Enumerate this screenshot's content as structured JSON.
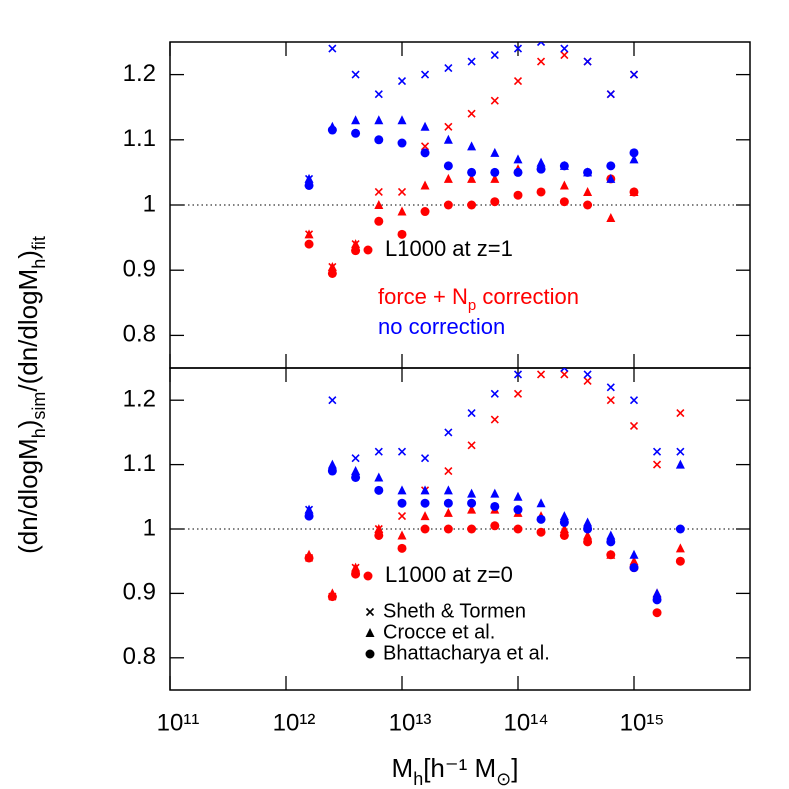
{
  "chart_data": [
    {
      "type": "scatter",
      "xlog": true,
      "xlim": [
        100000000000.0,
        1e+16
      ],
      "ylim": [
        0.75,
        1.25
      ],
      "hline": 1,
      "yticks": [
        {
          "value": 0.8,
          "label": "0.8"
        },
        {
          "value": 0.9,
          "label": "0.9"
        },
        1,
        {
          "value": 1.1,
          "label": "1.1"
        },
        {
          "value": 1.2,
          "label": "1.2"
        }
      ],
      "x": [
        1580000000000.0,
        2510000000000.0,
        3980000000000.0,
        6310000000000.0,
        10000000000000.0,
        15800000000000.0,
        25100000000000.0,
        39800000000000.0,
        63100000000000.0,
        100000000000000.0,
        158000000000000.0,
        251000000000000.0,
        398000000000000.0,
        631000000000000.0,
        1000000000000000.0
      ],
      "series": [
        {
          "color": "#ff0000",
          "marker": "circle",
          "values": [
            0.94,
            0.895,
            0.93,
            0.975,
            0.955,
            0.99,
            1.0,
            1.0,
            1.005,
            1.015,
            1.02,
            1.005,
            1.0,
            1.04,
            1.02
          ]
        },
        {
          "color": "#ff0000",
          "marker": "triangle",
          "values": [
            0.955,
            0.905,
            0.94,
            1.0,
            0.99,
            1.03,
            1.04,
            1.04,
            1.04,
            1.055,
            1.06,
            1.03,
            1.02,
            0.98,
            1.02
          ]
        },
        {
          "color": "#ff0000",
          "marker": "cross",
          "values": [
            0.955,
            0.905,
            0.94,
            1.02,
            1.02,
            1.09,
            1.12,
            1.14,
            1.16,
            1.19,
            1.22,
            1.23,
            1.22,
            1.17,
            1.2
          ]
        },
        {
          "color": "#0000ff",
          "marker": "circle",
          "values": [
            1.03,
            1.115,
            1.11,
            1.1,
            1.095,
            1.08,
            1.06,
            1.05,
            1.05,
            1.05,
            1.055,
            1.06,
            1.05,
            1.06,
            1.08
          ]
        },
        {
          "color": "#0000ff",
          "marker": "triangle",
          "values": [
            1.04,
            1.12,
            1.13,
            1.13,
            1.13,
            1.12,
            1.1,
            1.09,
            1.08,
            1.07,
            1.065,
            1.06,
            1.05,
            1.04,
            1.07
          ]
        },
        {
          "color": "#0000ff",
          "marker": "cross",
          "values": [
            1.04,
            1.24,
            1.2,
            1.17,
            1.19,
            1.2,
            1.21,
            1.22,
            1.23,
            1.24,
            1.25,
            1.24,
            1.22,
            1.17,
            1.2
          ]
        }
      ],
      "annotations": [
        {
          "parts": [
            "L1000 at z=1"
          ],
          "color": "#000000"
        },
        {
          "parts": [
            "force + N",
            "p",
            " correction"
          ],
          "color": "#ff0000"
        },
        {
          "parts": [
            "no correction"
          ],
          "color": "#0000ff"
        }
      ]
    },
    {
      "type": "scatter",
      "xlog": true,
      "xlim": [
        100000000000.0,
        1e+16
      ],
      "ylim": [
        0.75,
        1.25
      ],
      "hline": 1,
      "yticks": [
        {
          "value": 0.8,
          "label": "0.8"
        },
        {
          "value": 0.9,
          "label": "0.9"
        },
        1,
        {
          "value": 1.1,
          "label": "1.1"
        },
        {
          "value": 1.2,
          "label": "1.2"
        }
      ],
      "xticks": [
        {
          "value": 100000000000.0,
          "label": "10¹¹"
        },
        {
          "value": 1000000000000.0,
          "label": "10¹²"
        },
        {
          "value": 10000000000000.0,
          "label": "10¹³"
        },
        {
          "value": 100000000000000.0,
          "label": "10¹⁴"
        },
        {
          "value": 1000000000000000.0,
          "label": "10¹⁵"
        }
      ],
      "x_label_parts": [
        "M",
        "h",
        "[h⁻¹ M",
        "⊙",
        "]"
      ],
      "y_label_parts": [
        "(dn/dlogM",
        "h",
        ")",
        "sim",
        "/(dn/dlogM",
        "h",
        ")",
        "fit"
      ],
      "x": [
        1580000000000.0,
        2510000000000.0,
        3980000000000.0,
        6310000000000.0,
        10000000000000.0,
        15800000000000.0,
        25100000000000.0,
        39800000000000.0,
        63100000000000.0,
        100000000000000.0,
        158000000000000.0,
        251000000000000.0,
        398000000000000.0,
        631000000000000.0,
        1000000000000000.0,
        1580000000000000.0,
        2510000000000000.0
      ],
      "series": [
        {
          "color": "#ff0000",
          "marker": "circle",
          "values": [
            0.955,
            0.895,
            0.93,
            0.99,
            0.97,
            1.0,
            1.0,
            1.0,
            1.005,
            1.0,
            0.995,
            0.99,
            0.98,
            0.96,
            0.94,
            0.87,
            0.95
          ]
        },
        {
          "color": "#ff0000",
          "marker": "triangle",
          "values": [
            0.96,
            0.9,
            0.94,
            1.0,
            0.99,
            1.02,
            1.025,
            1.03,
            1.03,
            1.025,
            1.02,
            1.0,
            0.99,
            0.96,
            0.95,
            0.9,
            0.97
          ]
        },
        {
          "color": "#ff0000",
          "marker": "cross",
          "values": [
            0.955,
            0.895,
            0.94,
            1.0,
            1.02,
            1.06,
            1.09,
            1.13,
            1.17,
            1.21,
            1.24,
            1.24,
            1.23,
            1.2,
            1.16,
            1.1,
            1.18
          ]
        },
        {
          "color": "#0000ff",
          "marker": "circle",
          "values": [
            1.02,
            1.09,
            1.08,
            1.06,
            1.04,
            1.04,
            1.04,
            1.04,
            1.035,
            1.03,
            1.015,
            1.01,
            1.0,
            0.98,
            0.94,
            0.89,
            1.0
          ]
        },
        {
          "color": "#0000ff",
          "marker": "triangle",
          "values": [
            1.03,
            1.1,
            1.09,
            1.08,
            1.06,
            1.06,
            1.06,
            1.055,
            1.055,
            1.05,
            1.04,
            1.02,
            1.01,
            0.99,
            0.96,
            0.9,
            1.1
          ]
        },
        {
          "color": "#0000ff",
          "marker": "cross",
          "values": [
            1.03,
            1.2,
            1.11,
            1.12,
            1.12,
            1.11,
            1.15,
            1.18,
            1.21,
            1.24,
            1.26,
            1.25,
            1.24,
            1.22,
            1.2,
            1.12,
            1.12
          ]
        }
      ],
      "annotations": [
        {
          "parts": [
            "L1000 at z=0"
          ],
          "color": "#000000"
        }
      ],
      "legend_entries": [
        {
          "name": "Sheth & Tormen",
          "marker": "cross"
        },
        {
          "name": "Crocce et al.",
          "marker": "triangle"
        },
        {
          "name": "Bhattacharya et al.",
          "marker": "circle"
        }
      ]
    }
  ]
}
